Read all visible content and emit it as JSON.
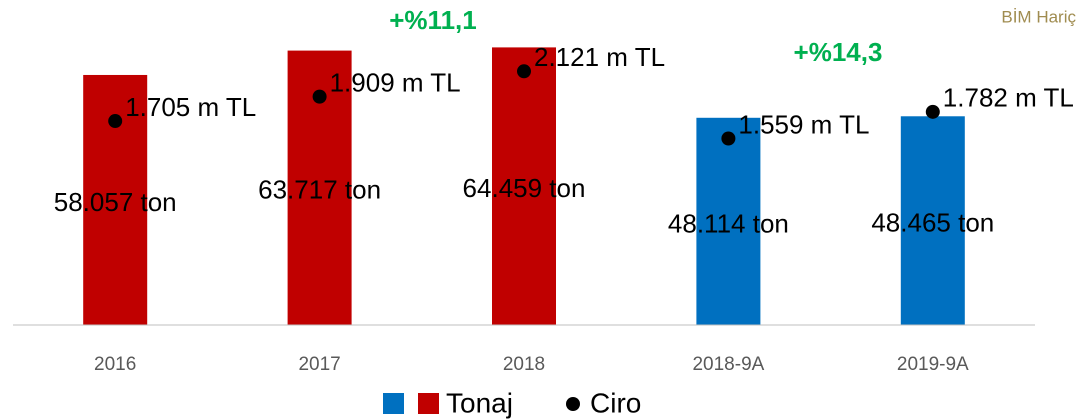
{
  "chart_data": {
    "type": "bar",
    "categories": [
      "2016",
      "2017",
      "2018",
      "2018-9A",
      "2019-9A"
    ],
    "series": [
      {
        "name": "Tonaj",
        "type": "bar",
        "colors": [
          "#c00000",
          "#c00000",
          "#c00000",
          "#0070c0",
          "#0070c0"
        ],
        "values": [
          58057,
          63717,
          64459,
          48114,
          48465
        ],
        "value_labels": [
          "58.057 ton",
          "63.717 ton",
          "64.459 ton",
          "48.114 ton",
          "48.465 ton"
        ]
      },
      {
        "name": "Ciro",
        "type": "scatter",
        "axis": "y2",
        "color": "#000000",
        "values": [
          1705,
          1909,
          2121,
          1559,
          1782
        ],
        "value_labels": [
          "1.705 m TL",
          "1.909 m TL",
          "2.121 m TL",
          "1.559 m TL",
          "1.782 m TL"
        ]
      }
    ],
    "legend_colors": [
      "#0070c0",
      "#c00000"
    ],
    "ylim": [
      0,
      75000
    ],
    "y2lim": [
      0,
      2700
    ],
    "annotations": [
      "+%11,1",
      "+%14,3",
      "BİM Hariç"
    ]
  }
}
